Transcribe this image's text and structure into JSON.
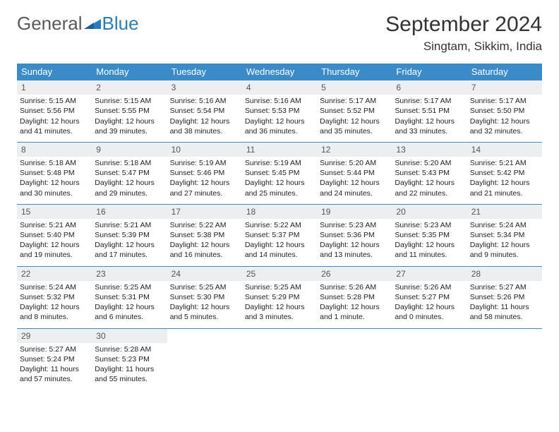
{
  "logo": {
    "general": "General",
    "blue": "Blue",
    "triangle_color": "#2b7bbf"
  },
  "header": {
    "title": "September 2024",
    "location": "Singtam, Sikkim, India"
  },
  "colors": {
    "header_bg": "#3b8bc9",
    "header_fg": "#ffffff",
    "daynum_bg": "#eceeef",
    "border": "#3b8bc9"
  },
  "font": {
    "body_pt": 10.5,
    "title_pt": 30,
    "location_pt": 17,
    "dayhead_pt": 13
  },
  "layout": {
    "cols": 7,
    "rows": 5,
    "first_day_col": 0,
    "days_in_month": 30
  },
  "day_names": [
    "Sunday",
    "Monday",
    "Tuesday",
    "Wednesday",
    "Thursday",
    "Friday",
    "Saturday"
  ],
  "days": [
    {
      "n": 1,
      "sunrise": "5:15 AM",
      "sunset": "5:56 PM",
      "daylight": "12 hours and 41 minutes."
    },
    {
      "n": 2,
      "sunrise": "5:15 AM",
      "sunset": "5:55 PM",
      "daylight": "12 hours and 39 minutes."
    },
    {
      "n": 3,
      "sunrise": "5:16 AM",
      "sunset": "5:54 PM",
      "daylight": "12 hours and 38 minutes."
    },
    {
      "n": 4,
      "sunrise": "5:16 AM",
      "sunset": "5:53 PM",
      "daylight": "12 hours and 36 minutes."
    },
    {
      "n": 5,
      "sunrise": "5:17 AM",
      "sunset": "5:52 PM",
      "daylight": "12 hours and 35 minutes."
    },
    {
      "n": 6,
      "sunrise": "5:17 AM",
      "sunset": "5:51 PM",
      "daylight": "12 hours and 33 minutes."
    },
    {
      "n": 7,
      "sunrise": "5:17 AM",
      "sunset": "5:50 PM",
      "daylight": "12 hours and 32 minutes."
    },
    {
      "n": 8,
      "sunrise": "5:18 AM",
      "sunset": "5:48 PM",
      "daylight": "12 hours and 30 minutes."
    },
    {
      "n": 9,
      "sunrise": "5:18 AM",
      "sunset": "5:47 PM",
      "daylight": "12 hours and 29 minutes."
    },
    {
      "n": 10,
      "sunrise": "5:19 AM",
      "sunset": "5:46 PM",
      "daylight": "12 hours and 27 minutes."
    },
    {
      "n": 11,
      "sunrise": "5:19 AM",
      "sunset": "5:45 PM",
      "daylight": "12 hours and 25 minutes."
    },
    {
      "n": 12,
      "sunrise": "5:20 AM",
      "sunset": "5:44 PM",
      "daylight": "12 hours and 24 minutes."
    },
    {
      "n": 13,
      "sunrise": "5:20 AM",
      "sunset": "5:43 PM",
      "daylight": "12 hours and 22 minutes."
    },
    {
      "n": 14,
      "sunrise": "5:21 AM",
      "sunset": "5:42 PM",
      "daylight": "12 hours and 21 minutes."
    },
    {
      "n": 15,
      "sunrise": "5:21 AM",
      "sunset": "5:40 PM",
      "daylight": "12 hours and 19 minutes."
    },
    {
      "n": 16,
      "sunrise": "5:21 AM",
      "sunset": "5:39 PM",
      "daylight": "12 hours and 17 minutes."
    },
    {
      "n": 17,
      "sunrise": "5:22 AM",
      "sunset": "5:38 PM",
      "daylight": "12 hours and 16 minutes."
    },
    {
      "n": 18,
      "sunrise": "5:22 AM",
      "sunset": "5:37 PM",
      "daylight": "12 hours and 14 minutes."
    },
    {
      "n": 19,
      "sunrise": "5:23 AM",
      "sunset": "5:36 PM",
      "daylight": "12 hours and 13 minutes."
    },
    {
      "n": 20,
      "sunrise": "5:23 AM",
      "sunset": "5:35 PM",
      "daylight": "12 hours and 11 minutes."
    },
    {
      "n": 21,
      "sunrise": "5:24 AM",
      "sunset": "5:34 PM",
      "daylight": "12 hours and 9 minutes."
    },
    {
      "n": 22,
      "sunrise": "5:24 AM",
      "sunset": "5:32 PM",
      "daylight": "12 hours and 8 minutes."
    },
    {
      "n": 23,
      "sunrise": "5:25 AM",
      "sunset": "5:31 PM",
      "daylight": "12 hours and 6 minutes."
    },
    {
      "n": 24,
      "sunrise": "5:25 AM",
      "sunset": "5:30 PM",
      "daylight": "12 hours and 5 minutes."
    },
    {
      "n": 25,
      "sunrise": "5:25 AM",
      "sunset": "5:29 PM",
      "daylight": "12 hours and 3 minutes."
    },
    {
      "n": 26,
      "sunrise": "5:26 AM",
      "sunset": "5:28 PM",
      "daylight": "12 hours and 1 minute."
    },
    {
      "n": 27,
      "sunrise": "5:26 AM",
      "sunset": "5:27 PM",
      "daylight": "12 hours and 0 minutes."
    },
    {
      "n": 28,
      "sunrise": "5:27 AM",
      "sunset": "5:26 PM",
      "daylight": "11 hours and 58 minutes."
    },
    {
      "n": 29,
      "sunrise": "5:27 AM",
      "sunset": "5:24 PM",
      "daylight": "11 hours and 57 minutes."
    },
    {
      "n": 30,
      "sunrise": "5:28 AM",
      "sunset": "5:23 PM",
      "daylight": "11 hours and 55 minutes."
    }
  ],
  "labels": {
    "sunrise": "Sunrise:",
    "sunset": "Sunset:",
    "daylight": "Daylight:"
  }
}
